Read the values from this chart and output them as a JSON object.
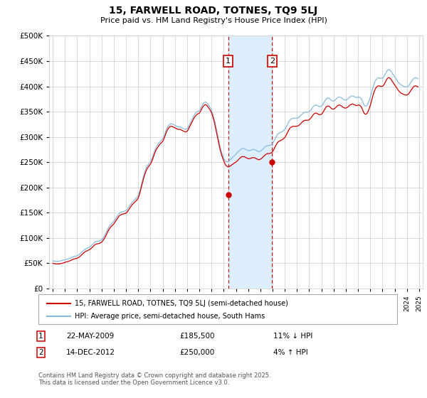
{
  "title": "15, FARWELL ROAD, TOTNES, TQ9 5LJ",
  "subtitle": "Price paid vs. HM Land Registry's House Price Index (HPI)",
  "legend_line1": "15, FARWELL ROAD, TOTNES, TQ9 5LJ (semi-detached house)",
  "legend_line2": "HPI: Average price, semi-detached house, South Hams",
  "transaction1_date": "22-MAY-2009",
  "transaction1_price": 185500,
  "transaction1_note": "11% ↓ HPI",
  "transaction2_date": "14-DEC-2012",
  "transaction2_price": 250000,
  "transaction2_note": "4% ↑ HPI",
  "footer": "Contains HM Land Registry data © Crown copyright and database right 2025.\nThis data is licensed under the Open Government Licence v3.0.",
  "ylim": [
    0,
    500000
  ],
  "yticks": [
    0,
    50000,
    100000,
    150000,
    200000,
    250000,
    300000,
    350000,
    400000,
    450000,
    500000
  ],
  "line_color_price": "#cc0000",
  "line_color_hpi": "#88bbdd",
  "shade_color": "#ddeeff",
  "marker1_x": 2009.37,
  "marker2_x": 2012.96,
  "hpi_data_years": [
    1995.0,
    1995.083,
    1995.167,
    1995.25,
    1995.333,
    1995.417,
    1995.5,
    1995.583,
    1995.667,
    1995.75,
    1995.833,
    1995.917,
    1996.0,
    1996.083,
    1996.167,
    1996.25,
    1996.333,
    1996.417,
    1996.5,
    1996.583,
    1996.667,
    1996.75,
    1996.833,
    1996.917,
    1997.0,
    1997.083,
    1997.167,
    1997.25,
    1997.333,
    1997.417,
    1997.5,
    1997.583,
    1997.667,
    1997.75,
    1997.833,
    1997.917,
    1998.0,
    1998.083,
    1998.167,
    1998.25,
    1998.333,
    1998.417,
    1998.5,
    1998.583,
    1998.667,
    1998.75,
    1998.833,
    1998.917,
    1999.0,
    1999.083,
    1999.167,
    1999.25,
    1999.333,
    1999.417,
    1999.5,
    1999.583,
    1999.667,
    1999.75,
    1999.833,
    1999.917,
    2000.0,
    2000.083,
    2000.167,
    2000.25,
    2000.333,
    2000.417,
    2000.5,
    2000.583,
    2000.667,
    2000.75,
    2000.833,
    2000.917,
    2001.0,
    2001.083,
    2001.167,
    2001.25,
    2001.333,
    2001.417,
    2001.5,
    2001.583,
    2001.667,
    2001.75,
    2001.833,
    2001.917,
    2002.0,
    2002.083,
    2002.167,
    2002.25,
    2002.333,
    2002.417,
    2002.5,
    2002.583,
    2002.667,
    2002.75,
    2002.833,
    2002.917,
    2003.0,
    2003.083,
    2003.167,
    2003.25,
    2003.333,
    2003.417,
    2003.5,
    2003.583,
    2003.667,
    2003.75,
    2003.833,
    2003.917,
    2004.0,
    2004.083,
    2004.167,
    2004.25,
    2004.333,
    2004.417,
    2004.5,
    2004.583,
    2004.667,
    2004.75,
    2004.833,
    2004.917,
    2005.0,
    2005.083,
    2005.167,
    2005.25,
    2005.333,
    2005.417,
    2005.5,
    2005.583,
    2005.667,
    2005.75,
    2005.833,
    2005.917,
    2006.0,
    2006.083,
    2006.167,
    2006.25,
    2006.333,
    2006.417,
    2006.5,
    2006.583,
    2006.667,
    2006.75,
    2006.833,
    2006.917,
    2007.0,
    2007.083,
    2007.167,
    2007.25,
    2007.333,
    2007.417,
    2007.5,
    2007.583,
    2007.667,
    2007.75,
    2007.833,
    2007.917,
    2008.0,
    2008.083,
    2008.167,
    2008.25,
    2008.333,
    2008.417,
    2008.5,
    2008.583,
    2008.667,
    2008.75,
    2008.833,
    2008.917,
    2009.0,
    2009.083,
    2009.167,
    2009.25,
    2009.333,
    2009.417,
    2009.5,
    2009.583,
    2009.667,
    2009.75,
    2009.833,
    2009.917,
    2010.0,
    2010.083,
    2010.167,
    2010.25,
    2010.333,
    2010.417,
    2010.5,
    2010.583,
    2010.667,
    2010.75,
    2010.833,
    2010.917,
    2011.0,
    2011.083,
    2011.167,
    2011.25,
    2011.333,
    2011.417,
    2011.5,
    2011.583,
    2011.667,
    2011.75,
    2011.833,
    2011.917,
    2012.0,
    2012.083,
    2012.167,
    2012.25,
    2012.333,
    2012.417,
    2012.5,
    2012.583,
    2012.667,
    2012.75,
    2012.833,
    2012.917,
    2013.0,
    2013.083,
    2013.167,
    2013.25,
    2013.333,
    2013.417,
    2013.5,
    2013.583,
    2013.667,
    2013.75,
    2013.833,
    2013.917,
    2014.0,
    2014.083,
    2014.167,
    2014.25,
    2014.333,
    2014.417,
    2014.5,
    2014.583,
    2014.667,
    2014.75,
    2014.833,
    2014.917,
    2015.0,
    2015.083,
    2015.167,
    2015.25,
    2015.333,
    2015.417,
    2015.5,
    2015.583,
    2015.667,
    2015.75,
    2015.833,
    2015.917,
    2016.0,
    2016.083,
    2016.167,
    2016.25,
    2016.333,
    2016.417,
    2016.5,
    2016.583,
    2016.667,
    2016.75,
    2016.833,
    2016.917,
    2017.0,
    2017.083,
    2017.167,
    2017.25,
    2017.333,
    2017.417,
    2017.5,
    2017.583,
    2017.667,
    2017.75,
    2017.833,
    2017.917,
    2018.0,
    2018.083,
    2018.167,
    2018.25,
    2018.333,
    2018.417,
    2018.5,
    2018.583,
    2018.667,
    2018.75,
    2018.833,
    2018.917,
    2019.0,
    2019.083,
    2019.167,
    2019.25,
    2019.333,
    2019.417,
    2019.5,
    2019.583,
    2019.667,
    2019.75,
    2019.833,
    2019.917,
    2020.0,
    2020.083,
    2020.167,
    2020.25,
    2020.333,
    2020.417,
    2020.5,
    2020.583,
    2020.667,
    2020.75,
    2020.833,
    2020.917,
    2021.0,
    2021.083,
    2021.167,
    2021.25,
    2021.333,
    2021.417,
    2021.5,
    2021.583,
    2021.667,
    2021.75,
    2021.833,
    2021.917,
    2022.0,
    2022.083,
    2022.167,
    2022.25,
    2022.333,
    2022.417,
    2022.5,
    2022.583,
    2022.667,
    2022.75,
    2022.833,
    2022.917,
    2023.0,
    2023.083,
    2023.167,
    2023.25,
    2023.333,
    2023.417,
    2023.5,
    2023.583,
    2023.667,
    2023.75,
    2023.833,
    2023.917,
    2024.0,
    2024.083,
    2024.167,
    2024.25,
    2024.333,
    2024.417,
    2024.5,
    2024.583,
    2024.667,
    2024.75,
    2024.833,
    2024.917
  ],
  "hpi_data_values": [
    55000,
    54500,
    54200,
    53800,
    53500,
    53800,
    54000,
    54500,
    55000,
    55500,
    56000,
    56500,
    57000,
    57500,
    58000,
    58500,
    59200,
    60000,
    61000,
    62000,
    63000,
    63500,
    64000,
    64500,
    65000,
    66000,
    67500,
    69000,
    71000,
    73000,
    75000,
    76500,
    78000,
    79000,
    80000,
    81000,
    82000,
    83500,
    85000,
    87000,
    89000,
    91000,
    92500,
    93000,
    93500,
    94000,
    94500,
    95500,
    97000,
    99000,
    102000,
    105000,
    109000,
    113000,
    117000,
    121000,
    124000,
    127000,
    129000,
    131000,
    133000,
    136000,
    139000,
    142000,
    145000,
    148000,
    150000,
    151000,
    152000,
    152500,
    153000,
    153500,
    154000,
    156000,
    159000,
    162000,
    165000,
    168000,
    171000,
    173000,
    175000,
    177000,
    179000,
    181000,
    184000,
    190000,
    197000,
    205000,
    213000,
    221000,
    228000,
    234000,
    239000,
    243000,
    246000,
    249000,
    251000,
    255000,
    260000,
    266000,
    272000,
    277000,
    281000,
    284000,
    287000,
    290000,
    292000,
    294000,
    296000,
    300000,
    305000,
    311000,
    316000,
    320000,
    323000,
    325000,
    326000,
    326000,
    325000,
    324000,
    323000,
    322000,
    321000,
    320000,
    320000,
    320000,
    319000,
    318000,
    317000,
    316000,
    315000,
    315000,
    316000,
    319000,
    323000,
    327000,
    331000,
    335000,
    339000,
    343000,
    346000,
    348000,
    350000,
    351000,
    352000,
    355000,
    359000,
    363000,
    366000,
    368000,
    369000,
    368000,
    366000,
    363000,
    360000,
    357000,
    353000,
    347000,
    340000,
    332000,
    323000,
    313000,
    303000,
    293000,
    284000,
    276000,
    269000,
    263000,
    258000,
    254000,
    252000,
    251000,
    251000,
    252000,
    254000,
    256000,
    258000,
    260000,
    262000,
    264000,
    266000,
    268000,
    270000,
    272000,
    274000,
    276000,
    277000,
    277000,
    277000,
    276000,
    275000,
    274000,
    273000,
    273000,
    273000,
    274000,
    275000,
    275000,
    275000,
    274000,
    273000,
    272000,
    271000,
    271000,
    272000,
    273000,
    275000,
    277000,
    279000,
    281000,
    282000,
    283000,
    283000,
    283000,
    284000,
    285000,
    287000,
    290000,
    294000,
    298000,
    302000,
    305000,
    307000,
    308000,
    309000,
    310000,
    311000,
    313000,
    315000,
    318000,
    322000,
    326000,
    330000,
    333000,
    335000,
    336000,
    337000,
    337000,
    337000,
    337000,
    337000,
    338000,
    339000,
    341000,
    343000,
    345000,
    347000,
    348000,
    349000,
    349000,
    349000,
    349000,
    350000,
    352000,
    354000,
    357000,
    360000,
    362000,
    363000,
    363000,
    362000,
    361000,
    360000,
    360000,
    361000,
    363000,
    366000,
    370000,
    373000,
    376000,
    377000,
    377000,
    376000,
    374000,
    372000,
    371000,
    371000,
    372000,
    374000,
    376000,
    378000,
    379000,
    379000,
    378000,
    377000,
    375000,
    374000,
    373000,
    373000,
    374000,
    375000,
    377000,
    379000,
    380000,
    381000,
    381000,
    380000,
    379000,
    378000,
    378000,
    379000,
    379000,
    378000,
    376000,
    372000,
    367000,
    363000,
    361000,
    361000,
    363000,
    367000,
    372000,
    378000,
    385000,
    393000,
    400000,
    406000,
    411000,
    414000,
    416000,
    417000,
    417000,
    416000,
    416000,
    416000,
    418000,
    421000,
    425000,
    429000,
    432000,
    433000,
    433000,
    431000,
    428000,
    425000,
    422000,
    419000,
    416000,
    413000,
    410000,
    407000,
    405000,
    403000,
    402000,
    401000,
    400000,
    399000,
    399000,
    399000,
    400000,
    402000,
    405000,
    408000,
    411000,
    414000,
    416000,
    417000,
    417000,
    416000,
    415000
  ],
  "price_data_years": [
    1995.0,
    1995.083,
    1995.167,
    1995.25,
    1995.333,
    1995.417,
    1995.5,
    1995.583,
    1995.667,
    1995.75,
    1995.833,
    1995.917,
    1996.0,
    1996.083,
    1996.167,
    1996.25,
    1996.333,
    1996.417,
    1996.5,
    1996.583,
    1996.667,
    1996.75,
    1996.833,
    1996.917,
    1997.0,
    1997.083,
    1997.167,
    1997.25,
    1997.333,
    1997.417,
    1997.5,
    1997.583,
    1997.667,
    1997.75,
    1997.833,
    1997.917,
    1998.0,
    1998.083,
    1998.167,
    1998.25,
    1998.333,
    1998.417,
    1998.5,
    1998.583,
    1998.667,
    1998.75,
    1998.833,
    1998.917,
    1999.0,
    1999.083,
    1999.167,
    1999.25,
    1999.333,
    1999.417,
    1999.5,
    1999.583,
    1999.667,
    1999.75,
    1999.833,
    1999.917,
    2000.0,
    2000.083,
    2000.167,
    2000.25,
    2000.333,
    2000.417,
    2000.5,
    2000.583,
    2000.667,
    2000.75,
    2000.833,
    2000.917,
    2001.0,
    2001.083,
    2001.167,
    2001.25,
    2001.333,
    2001.417,
    2001.5,
    2001.583,
    2001.667,
    2001.75,
    2001.833,
    2001.917,
    2002.0,
    2002.083,
    2002.167,
    2002.25,
    2002.333,
    2002.417,
    2002.5,
    2002.583,
    2002.667,
    2002.75,
    2002.833,
    2002.917,
    2003.0,
    2003.083,
    2003.167,
    2003.25,
    2003.333,
    2003.417,
    2003.5,
    2003.583,
    2003.667,
    2003.75,
    2003.833,
    2003.917,
    2004.0,
    2004.083,
    2004.167,
    2004.25,
    2004.333,
    2004.417,
    2004.5,
    2004.583,
    2004.667,
    2004.75,
    2004.833,
    2004.917,
    2005.0,
    2005.083,
    2005.167,
    2005.25,
    2005.333,
    2005.417,
    2005.5,
    2005.583,
    2005.667,
    2005.75,
    2005.833,
    2005.917,
    2006.0,
    2006.083,
    2006.167,
    2006.25,
    2006.333,
    2006.417,
    2006.5,
    2006.583,
    2006.667,
    2006.75,
    2006.833,
    2006.917,
    2007.0,
    2007.083,
    2007.167,
    2007.25,
    2007.333,
    2007.417,
    2007.5,
    2007.583,
    2007.667,
    2007.75,
    2007.833,
    2007.917,
    2008.0,
    2008.083,
    2008.167,
    2008.25,
    2008.333,
    2008.417,
    2008.5,
    2008.583,
    2008.667,
    2008.75,
    2008.833,
    2008.917,
    2009.0,
    2009.083,
    2009.167,
    2009.25,
    2009.333,
    2009.417,
    2009.5,
    2009.583,
    2009.667,
    2009.75,
    2009.833,
    2009.917,
    2010.0,
    2010.083,
    2010.167,
    2010.25,
    2010.333,
    2010.417,
    2010.5,
    2010.583,
    2010.667,
    2010.75,
    2010.833,
    2010.917,
    2011.0,
    2011.083,
    2011.167,
    2011.25,
    2011.333,
    2011.417,
    2011.5,
    2011.583,
    2011.667,
    2011.75,
    2011.833,
    2011.917,
    2012.0,
    2012.083,
    2012.167,
    2012.25,
    2012.333,
    2012.417,
    2012.5,
    2012.583,
    2012.667,
    2012.75,
    2012.833,
    2012.917,
    2013.0,
    2013.083,
    2013.167,
    2013.25,
    2013.333,
    2013.417,
    2013.5,
    2013.583,
    2013.667,
    2013.75,
    2013.833,
    2013.917,
    2014.0,
    2014.083,
    2014.167,
    2014.25,
    2014.333,
    2014.417,
    2014.5,
    2014.583,
    2014.667,
    2014.75,
    2014.833,
    2014.917,
    2015.0,
    2015.083,
    2015.167,
    2015.25,
    2015.333,
    2015.417,
    2015.5,
    2015.583,
    2015.667,
    2015.75,
    2015.833,
    2015.917,
    2016.0,
    2016.083,
    2016.167,
    2016.25,
    2016.333,
    2016.417,
    2016.5,
    2016.583,
    2016.667,
    2016.75,
    2016.833,
    2016.917,
    2017.0,
    2017.083,
    2017.167,
    2017.25,
    2017.333,
    2017.417,
    2017.5,
    2017.583,
    2017.667,
    2017.75,
    2017.833,
    2017.917,
    2018.0,
    2018.083,
    2018.167,
    2018.25,
    2018.333,
    2018.417,
    2018.5,
    2018.583,
    2018.667,
    2018.75,
    2018.833,
    2018.917,
    2019.0,
    2019.083,
    2019.167,
    2019.25,
    2019.333,
    2019.417,
    2019.5,
    2019.583,
    2019.667,
    2019.75,
    2019.833,
    2019.917,
    2020.0,
    2020.083,
    2020.167,
    2020.25,
    2020.333,
    2020.417,
    2020.5,
    2020.583,
    2020.667,
    2020.75,
    2020.833,
    2020.917,
    2021.0,
    2021.083,
    2021.167,
    2021.25,
    2021.333,
    2021.417,
    2021.5,
    2021.583,
    2021.667,
    2021.75,
    2021.833,
    2021.917,
    2022.0,
    2022.083,
    2022.167,
    2022.25,
    2022.333,
    2022.417,
    2022.5,
    2022.583,
    2022.667,
    2022.75,
    2022.833,
    2022.917,
    2023.0,
    2023.083,
    2023.167,
    2023.25,
    2023.333,
    2023.417,
    2023.5,
    2023.583,
    2023.667,
    2023.75,
    2023.833,
    2023.917,
    2024.0,
    2024.083,
    2024.167,
    2024.25,
    2024.333,
    2024.417,
    2024.5,
    2024.583,
    2024.667,
    2024.75,
    2024.833,
    2024.917
  ],
  "price_data_values": [
    50000,
    49500,
    49200,
    48800,
    48500,
    48800,
    48500,
    49000,
    49500,
    50000,
    50500,
    51000,
    52000,
    52500,
    53000,
    53500,
    54200,
    55000,
    56000,
    57000,
    58000,
    58500,
    59000,
    59500,
    60000,
    61000,
    62500,
    64000,
    66000,
    68000,
    70000,
    71500,
    73000,
    74000,
    75000,
    76000,
    77000,
    78500,
    80000,
    82000,
    84000,
    86000,
    87500,
    88000,
    88500,
    89000,
    89500,
    90500,
    92000,
    94000,
    97000,
    100000,
    104000,
    108000,
    112000,
    116000,
    119000,
    122000,
    124000,
    126000,
    128000,
    131000,
    134000,
    137000,
    140000,
    143000,
    145000,
    146000,
    147000,
    147500,
    148000,
    148500,
    149000,
    151000,
    154000,
    157000,
    160000,
    163000,
    166000,
    168000,
    170000,
    172000,
    174000,
    176000,
    179000,
    185000,
    192000,
    200000,
    208000,
    216000,
    223000,
    229000,
    234000,
    238000,
    241000,
    244000,
    246000,
    250000,
    255000,
    261000,
    267000,
    272000,
    276000,
    279000,
    282000,
    285000,
    287000,
    289000,
    291000,
    295000,
    300000,
    306000,
    311000,
    315000,
    318000,
    320000,
    321000,
    321000,
    320000,
    319000,
    318000,
    317000,
    316000,
    315000,
    315000,
    315000,
    314000,
    313000,
    312000,
    311000,
    310000,
    310000,
    311000,
    314000,
    318000,
    322000,
    326000,
    330000,
    334000,
    338000,
    341000,
    343000,
    345000,
    346000,
    347000,
    350000,
    354000,
    358000,
    361000,
    363000,
    364000,
    363000,
    361000,
    358000,
    355000,
    352000,
    348000,
    342000,
    335000,
    327000,
    318000,
    308000,
    298000,
    288000,
    279000,
    271000,
    264000,
    258000,
    253000,
    248000,
    244000,
    242000,
    241000,
    241000,
    242000,
    243000,
    245000,
    246000,
    248000,
    249000,
    250000,
    252000,
    254000,
    256000,
    258000,
    260000,
    261000,
    261000,
    261000,
    260000,
    259000,
    258000,
    257000,
    257000,
    257000,
    258000,
    259000,
    259000,
    259000,
    258000,
    257000,
    256000,
    255000,
    255000,
    256000,
    257000,
    259000,
    261000,
    263000,
    265000,
    266000,
    267000,
    267000,
    267000,
    268000,
    269000,
    271000,
    274000,
    278000,
    282000,
    286000,
    289000,
    291000,
    292000,
    293000,
    294000,
    295000,
    297000,
    299000,
    302000,
    306000,
    310000,
    314000,
    317000,
    319000,
    320000,
    321000,
    321000,
    321000,
    321000,
    321000,
    322000,
    323000,
    325000,
    327000,
    329000,
    331000,
    332000,
    333000,
    333000,
    333000,
    333000,
    334000,
    336000,
    338000,
    341000,
    344000,
    346000,
    347000,
    347000,
    346000,
    345000,
    344000,
    344000,
    345000,
    347000,
    350000,
    354000,
    357000,
    360000,
    361000,
    361000,
    360000,
    358000,
    356000,
    355000,
    355000,
    356000,
    358000,
    360000,
    362000,
    363000,
    363000,
    362000,
    361000,
    359000,
    358000,
    357000,
    357000,
    358000,
    359000,
    361000,
    363000,
    364000,
    365000,
    365000,
    364000,
    363000,
    362000,
    362000,
    363000,
    363000,
    362000,
    360000,
    356000,
    351000,
    347000,
    345000,
    345000,
    347000,
    351000,
    356000,
    362000,
    369000,
    377000,
    384000,
    390000,
    395000,
    398000,
    400000,
    401000,
    401000,
    400000,
    400000,
    400000,
    402000,
    405000,
    409000,
    413000,
    416000,
    417000,
    417000,
    415000,
    412000,
    409000,
    406000,
    403000,
    400000,
    397000,
    394000,
    391000,
    389000,
    387000,
    386000,
    385000,
    384000,
    383000,
    383000,
    383000,
    384000,
    386000,
    389000,
    392000,
    395000,
    398000,
    400000,
    401000,
    401000,
    400000,
    399000
  ]
}
